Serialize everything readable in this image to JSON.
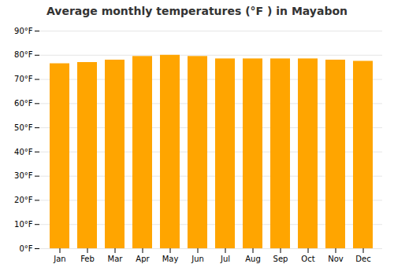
{
  "chart_data": {
    "type": "bar",
    "title": "Average monthly temperatures (°F ) in Mayabon",
    "categories": [
      "Jan",
      "Feb",
      "Mar",
      "Apr",
      "May",
      "Jun",
      "Jul",
      "Aug",
      "Sep",
      "Oct",
      "Nov",
      "Dec"
    ],
    "values": [
      76.5,
      77.0,
      78.0,
      79.5,
      80.0,
      79.5,
      78.5,
      78.5,
      78.5,
      78.5,
      78.0,
      77.5
    ],
    "color": "#FFA500",
    "ylim": [
      0,
      90
    ],
    "yticks": [
      {
        "value": 0,
        "label": "0°F"
      },
      {
        "value": 10,
        "label": "10°F"
      },
      {
        "value": 20,
        "label": "20°F"
      },
      {
        "value": 30,
        "label": "30°F"
      },
      {
        "value": 40,
        "label": "40°F"
      },
      {
        "value": 50,
        "label": "50°F"
      },
      {
        "value": 60,
        "label": "60°F"
      },
      {
        "value": 70,
        "label": "70°F"
      },
      {
        "value": 80,
        "label": "80°F"
      },
      {
        "value": 90,
        "label": "90°F"
      }
    ],
    "grid": true
  }
}
